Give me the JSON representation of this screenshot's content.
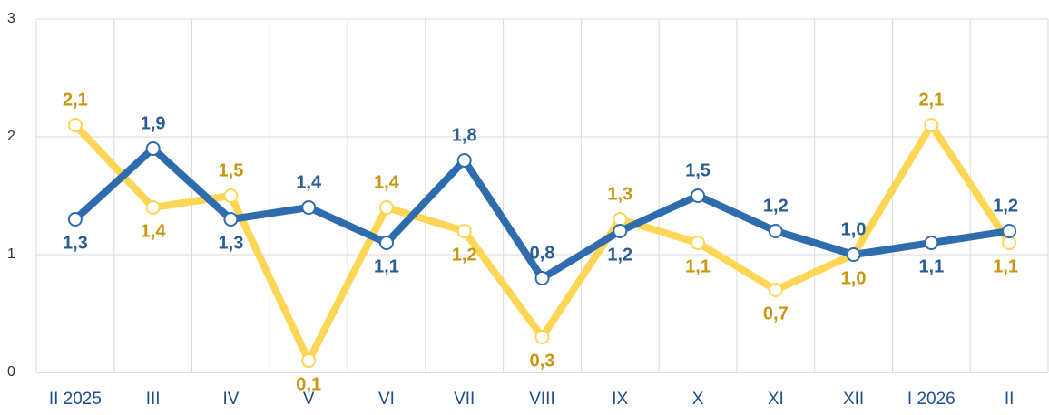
{
  "chart_data": {
    "type": "line",
    "categories": [
      "II 2025",
      "III",
      "IV",
      "V",
      "VI",
      "VII",
      "VIII",
      "IX",
      "X",
      "XI",
      "XII",
      "I 2026",
      "II"
    ],
    "series": [
      {
        "color": "#fdd655",
        "label_color": "#c8960f",
        "values": [
          2.1,
          1.4,
          1.5,
          0.1,
          1.4,
          1.2,
          0.3,
          1.3,
          1.1,
          0.7,
          1.0,
          2.1,
          1.1
        ],
        "value_labels": [
          "2,1",
          "1,4",
          "1,5",
          "0,1",
          "1,4",
          "1,2",
          "0,3",
          "1,3",
          "1,1",
          "0,7",
          "1,0",
          "2,1",
          "1,1"
        ]
      },
      {
        "color": "#2f6cad",
        "label_color": "#2a5d92",
        "values": [
          1.3,
          1.9,
          1.3,
          1.4,
          1.1,
          1.8,
          0.8,
          1.2,
          1.5,
          1.2,
          1.0,
          1.1,
          1.2
        ],
        "value_labels": [
          "1,3",
          "1,9",
          "1,3",
          "1,4",
          "1,1",
          "1,8",
          "0,8",
          "1,2",
          "1,5",
          "1,2",
          "1,0",
          "1,1",
          "1,2"
        ]
      }
    ],
    "ylim": [
      0,
      3
    ],
    "yticks": [
      0,
      1,
      2,
      3
    ],
    "grid": true
  }
}
